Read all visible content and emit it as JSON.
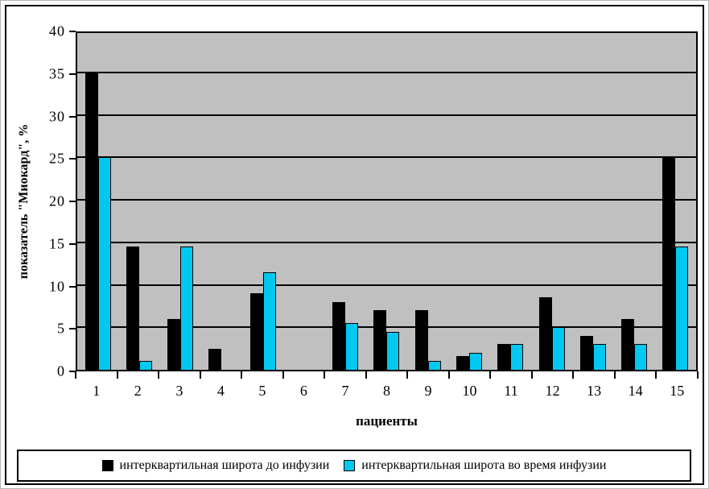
{
  "chart_data": {
    "type": "bar",
    "title": "",
    "xlabel": "пациенты",
    "ylabel": "показатель \"Миокард\", %",
    "categories": [
      "1",
      "2",
      "3",
      "4",
      "5",
      "6",
      "7",
      "8",
      "9",
      "10",
      "11",
      "12",
      "13",
      "14",
      "15"
    ],
    "series": [
      {
        "name": "интерквартильная широта до инфузии",
        "color": "#000000",
        "values": [
          35,
          14.5,
          6,
          2.5,
          9,
          0,
          8,
          7,
          7,
          1.6,
          3,
          8.5,
          4,
          6,
          25
        ]
      },
      {
        "name": "интерквартильная широта во время инфузии",
        "color": "#00c8f0",
        "values": [
          25,
          1,
          14.5,
          0,
          11.5,
          0,
          5.5,
          4.5,
          1,
          2,
          3,
          5,
          3,
          3,
          14.5
        ]
      }
    ],
    "ylim": [
      0,
      40
    ],
    "yticks": [
      0,
      5,
      10,
      15,
      20,
      25,
      30,
      35,
      40
    ],
    "grid": "horizontal",
    "legend_position": "bottom",
    "plot_bg": "#c0c0c0"
  }
}
